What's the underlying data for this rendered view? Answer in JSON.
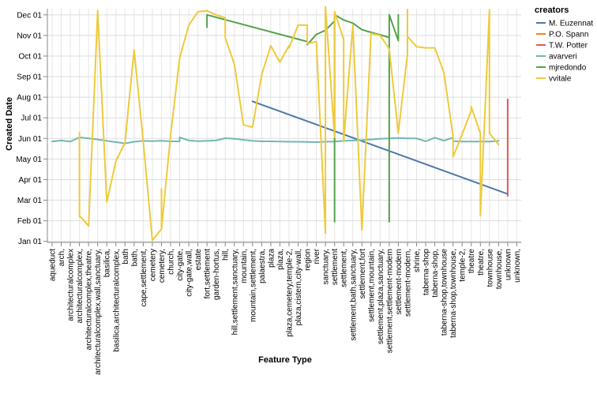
{
  "chart_data": {
    "type": "line",
    "title": "",
    "xlabel": "Feature Type",
    "ylabel": "Created Date",
    "x_axis_type": "categorical",
    "y_axis_type": "time",
    "grid": true,
    "legend_placement": "top-right",
    "legend_title": "creators",
    "y_ticks": [
      "Jan 01",
      "Feb 01",
      "Mar 01",
      "Apr 01",
      "May 01",
      "Jun 01",
      "Jul 01",
      "Aug 01",
      "Sep 01",
      "Oct 01",
      "Nov 01",
      "Dec 01"
    ],
    "ylim": [
      -0.05,
      11.3
    ],
    "categories": [
      "aqueduct",
      "arch,",
      "architecturalcomplex",
      "architecturalcomplex,",
      "architecturalcomplex,theatre,",
      "architecturalcomplex,wall,sanctuary,",
      "basilica,",
      "basilica,architecturalcomplex,",
      "bath",
      "bath,",
      "cape,settlement,",
      "cemetery",
      "cemetery,",
      "church,",
      "city-gate,",
      "city-gate,wall,",
      "estate",
      "fort,settlement",
      "garden-hortus,",
      "hill,",
      "hill,settlement,sanctuary,",
      "mountain,",
      "mountain,settlement,",
      "palaestra,",
      "plaza",
      "plaza,",
      "plaza,cemetery,temple-2,",
      "plaza,cistern,city-wall,",
      "region",
      "river",
      "sanctuary,",
      "settlement",
      "settlement,",
      "settlement,bath,sanctuary,",
      "settlement,fort",
      "settlement,mountain,",
      "settlement,plaza,sanctuary,",
      "settlement,settlement-modern",
      "settlement-modern",
      "settlement-modern,",
      "shrine,",
      "taberna-shop",
      "taberna-shop,",
      "taberna-shop,townhouse",
      "taberna-shop,townhouse,",
      "temple-2,",
      "theatre",
      "theatre,",
      "townhouse",
      "townhouse,",
      "unknown",
      "unknown,"
    ],
    "series": [
      {
        "name": "M. Euzennat",
        "color": "#4c78a8",
        "x": [
          22,
          50
        ],
        "y": [
          6.8,
          2.3
        ]
      },
      {
        "name": "P.O. Spann",
        "color": "#f58518",
        "x": [],
        "y": []
      },
      {
        "name": "T.W. Potter",
        "color": "#e45756",
        "x": [
          50,
          50
        ],
        "y": [
          6.9,
          2.2
        ]
      },
      {
        "name": "avarveri",
        "color": "#72b7b2",
        "x": [
          0,
          1,
          2,
          3,
          4,
          5,
          6,
          7,
          8,
          9,
          10,
          11,
          12,
          13,
          14,
          14,
          15,
          16,
          17,
          18,
          19,
          20,
          21,
          22,
          23,
          24,
          25,
          26,
          27,
          28,
          29,
          30,
          31,
          32,
          33,
          34,
          35,
          36,
          37,
          38,
          39,
          40,
          41,
          42,
          43,
          44,
          44,
          45,
          46,
          47,
          48,
          49
        ],
        "y": [
          4.85,
          4.9,
          4.85,
          5.05,
          5.0,
          4.95,
          4.88,
          4.82,
          4.76,
          4.84,
          4.88,
          4.87,
          4.89,
          4.86,
          4.86,
          5.05,
          4.9,
          4.87,
          4.88,
          4.9,
          5.01,
          4.98,
          4.93,
          4.88,
          4.86,
          4.86,
          4.85,
          4.84,
          4.84,
          4.83,
          4.82,
          4.84,
          4.85,
          4.88,
          4.9,
          4.92,
          4.95,
          4.98,
          5.0,
          5.02,
          5.0,
          5.0,
          4.86,
          5.04,
          4.89,
          5.04,
          4.87,
          4.85,
          4.85,
          4.85,
          4.85,
          4.88
        ]
      },
      {
        "name": "mjredondo",
        "color": "#54a24b",
        "x": [
          17,
          17,
          28,
          28,
          29,
          30,
          31,
          31,
          31,
          32,
          33,
          34,
          35,
          36,
          37,
          37,
          37,
          38,
          38,
          38
        ],
        "y": [
          10.4,
          11.0,
          9.7,
          9.55,
          10.05,
          10.25,
          10.7,
          0.95,
          11.0,
          10.75,
          10.6,
          10.28,
          10.15,
          10.03,
          9.9,
          0.95,
          11.0,
          9.75,
          11.0,
          9.85
        ]
      },
      {
        "name": "vvitale",
        "color": "#eeca3b",
        "x": [
          3,
          3,
          3,
          4,
          5,
          6,
          7,
          8,
          9,
          10,
          11,
          12,
          12,
          12,
          13,
          14,
          15,
          16,
          17,
          18,
          19,
          19,
          20,
          21,
          22,
          23,
          24,
          25,
          26,
          26,
          27,
          28,
          28,
          29,
          30,
          30,
          31,
          31,
          32,
          32,
          33,
          34,
          35,
          36,
          37,
          38,
          39,
          39,
          39,
          40,
          41,
          42,
          43,
          44,
          44,
          45,
          46,
          46,
          47,
          47,
          48,
          48,
          49
        ],
        "y": [
          1.2,
          5.3,
          1.25,
          0.75,
          11.2,
          1.9,
          3.9,
          4.8,
          9.3,
          4.85,
          0.05,
          0.6,
          2.55,
          0.6,
          5.15,
          8.9,
          10.5,
          11.15,
          11.2,
          11.0,
          10.85,
          9.9,
          8.6,
          5.65,
          5.55,
          8.1,
          9.5,
          8.7,
          9.5,
          9.4,
          10.5,
          10.5,
          9.6,
          9.7,
          0.4,
          11.4,
          5.05,
          11.15,
          9.8,
          4.85,
          10.5,
          0.55,
          10.1,
          10.0,
          9.35,
          5.25,
          9.1,
          11.25,
          9.95,
          9.45,
          9.4,
          9.4,
          8.2,
          5.1,
          4.1,
          5.2,
          6.35,
          6.55,
          5.25,
          1.25,
          11.25,
          5.25,
          4.7
        ]
      }
    ]
  }
}
